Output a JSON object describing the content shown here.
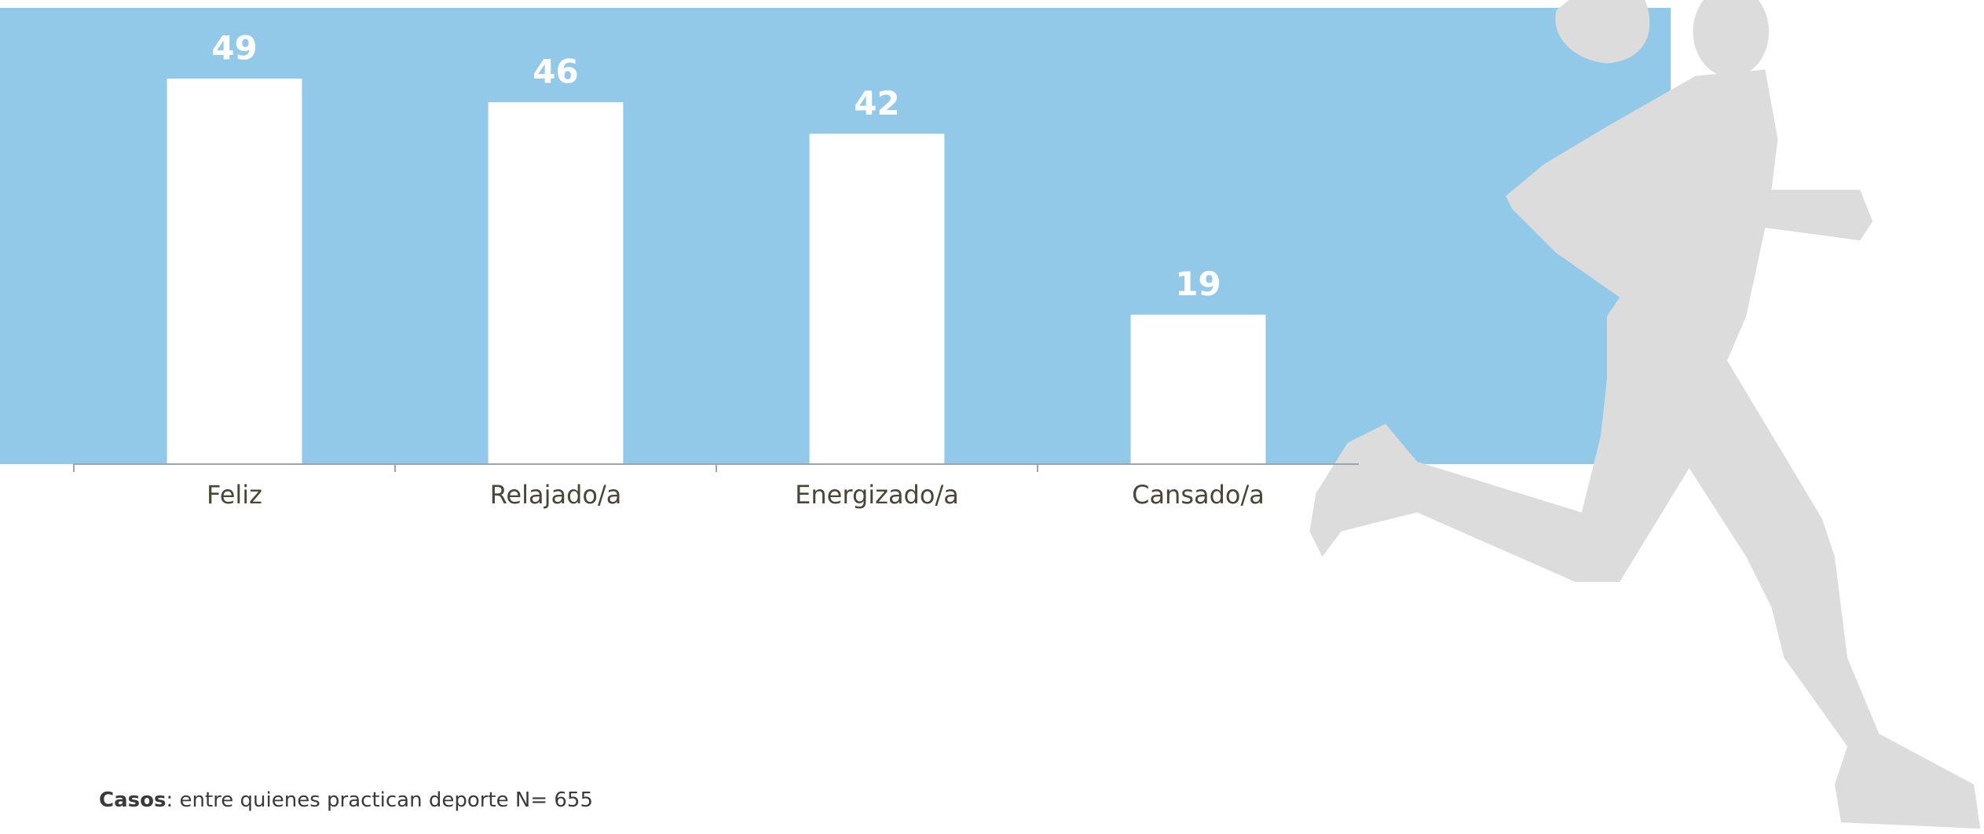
{
  "chart_data": {
    "type": "bar",
    "categories": [
      "Feliz",
      "Relajado/a",
      "Energizado/a",
      "Cansado/a"
    ],
    "values": [
      49,
      46,
      42,
      19
    ],
    "color": "#ffffff",
    "ylim": [
      0,
      58
    ]
  },
  "footnote": {
    "label": "Casos",
    "text": ": entre quienes practican deporte N= 655"
  }
}
